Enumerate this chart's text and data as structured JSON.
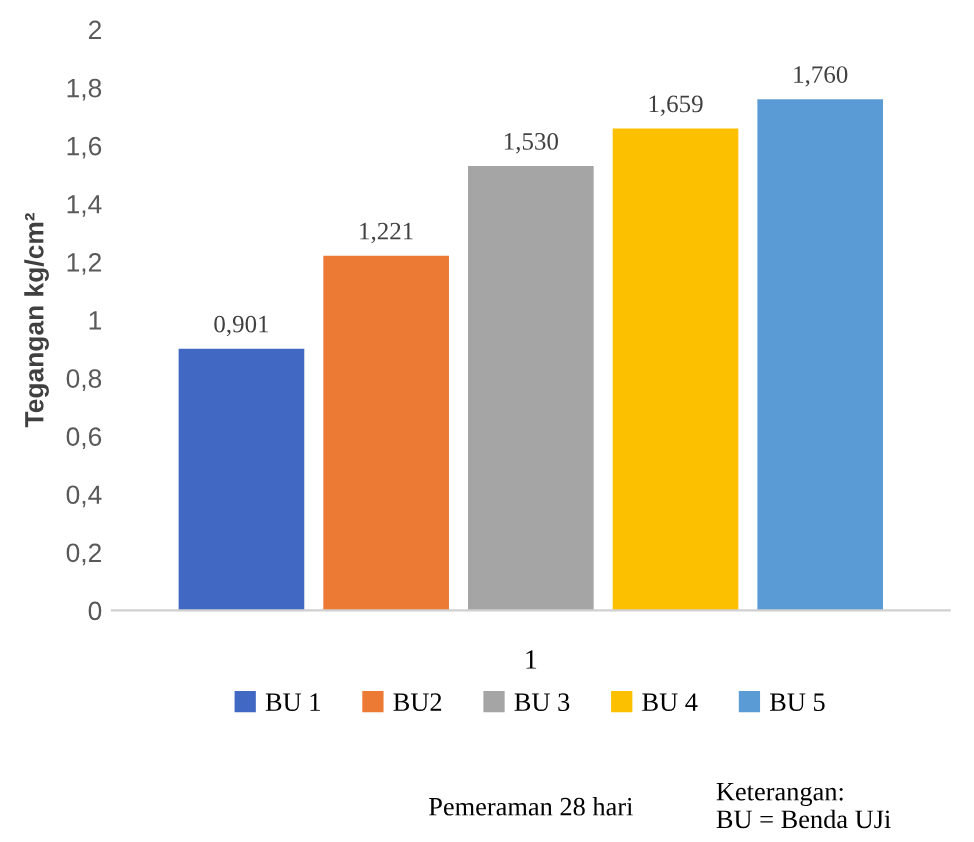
{
  "chart_data": {
    "type": "bar",
    "categories": [
      "1"
    ],
    "ylabel": "Tegangan kg/cm²",
    "series": [
      {
        "name": "BU 1",
        "color": "#4169c4",
        "values": [
          0.901
        ],
        "value_labels": [
          "0,901"
        ]
      },
      {
        "name": "BU2",
        "color": "#ec7a34",
        "values": [
          1.221
        ],
        "value_labels": [
          "1,221"
        ]
      },
      {
        "name": "BU 3",
        "color": "#a5a5a5",
        "values": [
          1.53
        ],
        "value_labels": [
          "1,530"
        ]
      },
      {
        "name": "BU 4",
        "color": "#fcc000",
        "values": [
          1.659
        ],
        "value_labels": [
          "1,659"
        ]
      },
      {
        "name": "BU 5",
        "color": "#5b9bd5",
        "values": [
          1.76
        ],
        "value_labels": [
          "1,760"
        ]
      }
    ],
    "ylim": [
      0,
      2
    ],
    "yticks": [
      0,
      {
        "value": 0.2,
        "label": "0,2"
      },
      {
        "value": 0.4,
        "label": "0,4"
      },
      {
        "value": 0.6,
        "label": "0,6"
      },
      {
        "value": 0.8,
        "label": "0,8"
      },
      1,
      {
        "value": 1.2,
        "label": "1,2"
      },
      {
        "value": 1.4,
        "label": "1,4"
      },
      {
        "value": 1.6,
        "label": "1,6"
      },
      {
        "value": 1.8,
        "label": "1,8"
      },
      2
    ],
    "grid": false,
    "legend": "bottom",
    "annotations": [
      "Pemeraman 28 hari",
      "Keterangan:\nBU = Benda UJi"
    ]
  }
}
